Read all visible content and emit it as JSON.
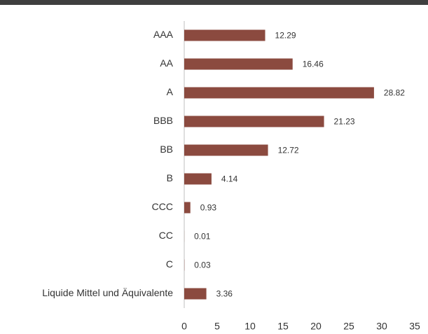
{
  "chart_data": {
    "type": "bar",
    "orientation": "horizontal",
    "categories": [
      "AAA",
      "AA",
      "A",
      "BBB",
      "BB",
      "B",
      "CCC",
      "CC",
      "C",
      "Liquide Mittel und Äquivalente"
    ],
    "values": [
      12.29,
      16.46,
      28.82,
      21.23,
      12.72,
      4.14,
      0.93,
      0.01,
      0.03,
      3.36
    ],
    "color": "#8b4a3f",
    "xlim": [
      0,
      35
    ],
    "xticks": [
      0,
      5,
      10,
      15,
      20,
      25,
      30,
      35
    ]
  }
}
